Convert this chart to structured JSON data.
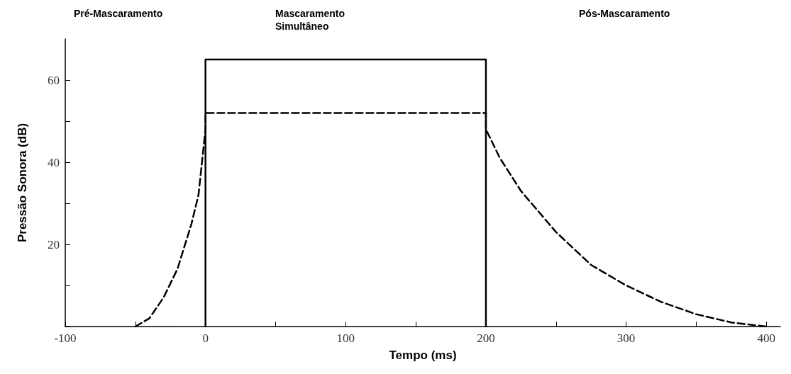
{
  "chart_data": {
    "type": "line",
    "xlabel": "Tempo (ms)",
    "ylabel": "Pressão Sonora (dB)",
    "annotations": [
      "Pré-Mascaramento",
      "Mascaramento Simultâneo",
      "Pós-Mascaramento"
    ],
    "xlim": [
      -100,
      410
    ],
    "ylim": [
      0,
      70
    ],
    "xticks": [
      -100,
      {
        "value": -50,
        "label": null
      },
      0,
      {
        "value": 50,
        "label": null
      },
      100,
      {
        "value": 150,
        "label": null
      },
      200,
      {
        "value": 250,
        "label": null
      },
      300,
      {
        "value": 350,
        "label": null
      },
      400
    ],
    "yticks": [
      {
        "value": 0,
        "label": null
      },
      {
        "value": 10,
        "label": null
      },
      20,
      {
        "value": 30,
        "label": null
      },
      40,
      {
        "value": 50,
        "label": null
      },
      60
    ],
    "grid": false,
    "marker": "none",
    "series": [
      {
        "color": "#000000",
        "line_style": "solid",
        "x": [
          0,
          0,
          200,
          200
        ],
        "values": [
          0,
          65,
          65,
          0
        ]
      },
      {
        "color": "#000000",
        "line_style": "dashed",
        "x": [
          -50,
          -40,
          -30,
          -20,
          -10,
          -5,
          0,
          0,
          200,
          200,
          210,
          225,
          250,
          275,
          300,
          325,
          350,
          375,
          400
        ],
        "values": [
          0,
          2,
          7,
          14,
          25,
          32,
          48,
          52,
          52,
          48,
          41,
          33,
          23,
          15,
          10,
          6,
          3,
          1,
          0
        ]
      }
    ]
  }
}
